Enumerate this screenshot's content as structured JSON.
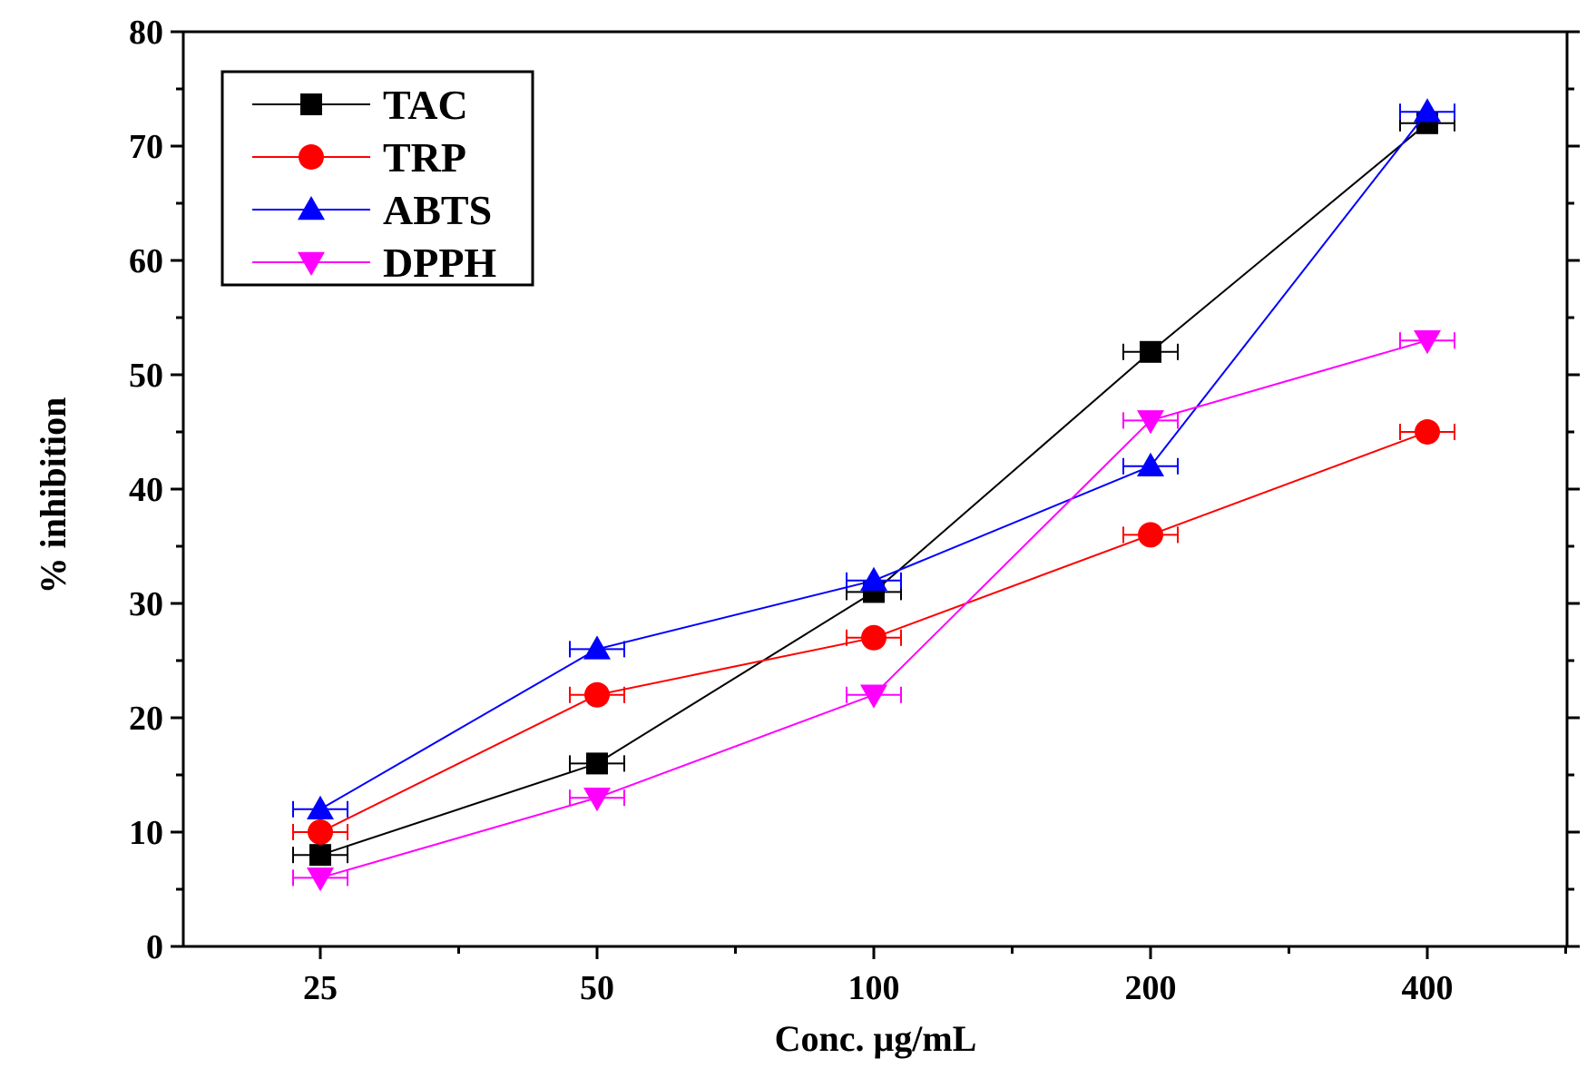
{
  "chart_data": {
    "type": "line",
    "title": "",
    "xlabel": "Conc. μg/mL",
    "ylabel": "% inhibition",
    "categories": [
      "25",
      "50",
      "100",
      "200",
      "400"
    ],
    "ylim": [
      0,
      80
    ],
    "yticks": [
      0,
      10,
      20,
      30,
      40,
      50,
      60,
      70,
      80
    ],
    "legend_position": "top-left",
    "grid": false,
    "series": [
      {
        "name": "TAC",
        "color": "#000000",
        "marker": "square",
        "values": [
          8,
          16,
          31,
          52,
          72
        ]
      },
      {
        "name": "TRP",
        "color": "#ff0000",
        "marker": "circle",
        "values": [
          10,
          22,
          27,
          36,
          45
        ]
      },
      {
        "name": "ABTS",
        "color": "#0000ff",
        "marker": "triangle-up",
        "values": [
          12,
          26,
          32,
          42,
          73
        ]
      },
      {
        "name": "DPPH",
        "color": "#ff00ff",
        "marker": "triangle-down",
        "values": [
          6,
          13,
          22,
          46,
          53
        ]
      }
    ]
  }
}
